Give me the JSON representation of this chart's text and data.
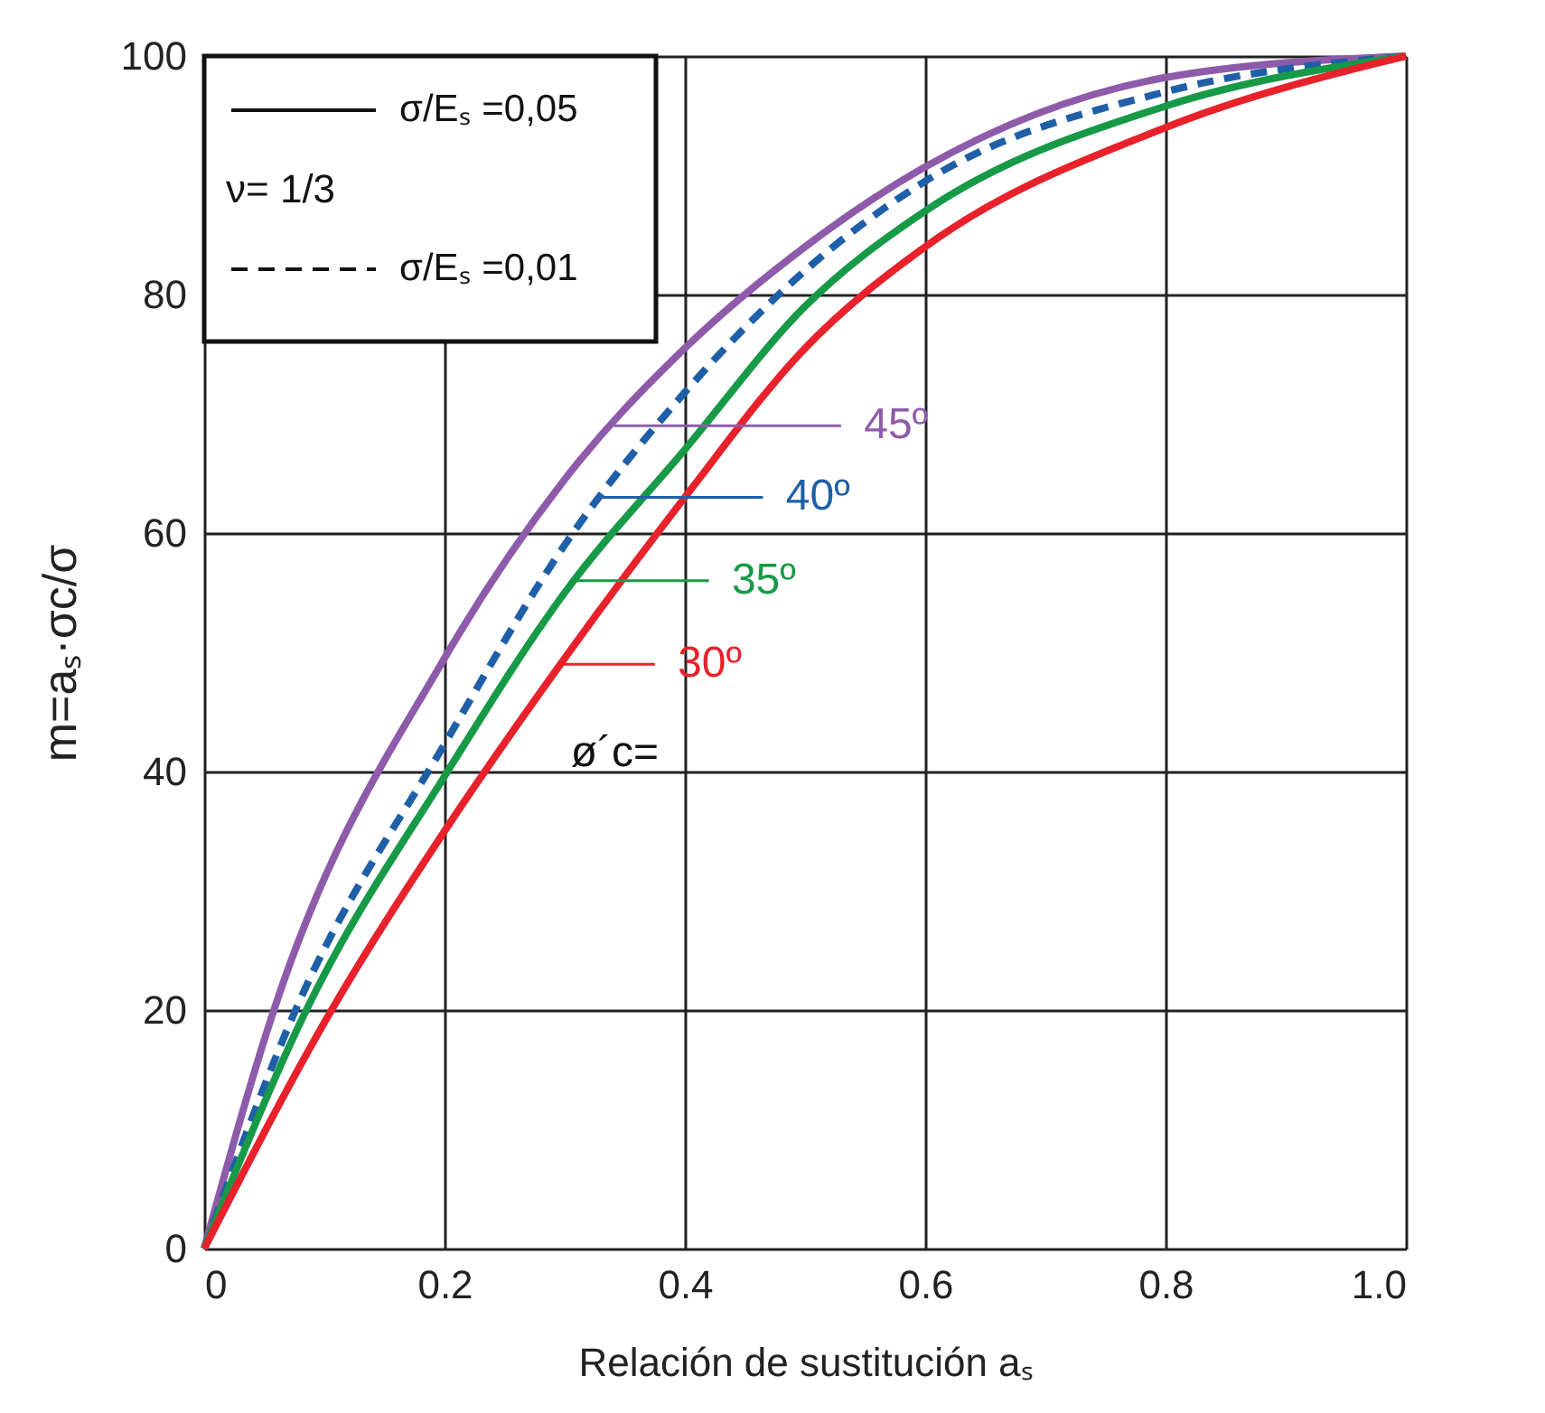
{
  "chart_data": {
    "type": "line",
    "xlabel": "Relación de sustitución aₛ",
    "ylabel": "m=aₛ·σc/σ",
    "legend_title": "ν= 1/3",
    "legend": "top left",
    "xlim": [
      0,
      1
    ],
    "ylim": [
      0,
      100
    ],
    "xticks": [
      0,
      0.2,
      0.4,
      0.6,
      0.8,
      {
        "value": 1,
        "label": "1.0"
      }
    ],
    "yticks": [
      0,
      20,
      40,
      60,
      80,
      100
    ],
    "grid": true,
    "marker": "none",
    "series": [
      {
        "name": "45º",
        "color": "#8e5bab",
        "line_style": "solid",
        "x": [
          0,
          0.058,
          0.2,
          0.3,
          0.4,
          0.5,
          0.6,
          0.8,
          1
        ],
        "values": [
          0,
          20,
          49.5,
          64.5,
          75.5,
          84,
          90.7,
          98.2,
          100
        ]
      },
      {
        "name": "40º",
        "color": "#1f5fa8",
        "line_style": "dashed",
        "x": [
          0,
          0.076,
          0.2,
          0.3,
          0.4,
          0.5,
          0.6,
          0.8,
          1
        ],
        "values": [
          0,
          20,
          42.3,
          59,
          71.8,
          82,
          89.5,
          97,
          100
        ]
      },
      {
        "name": "35º",
        "color": "#179a47",
        "line_style": "solid",
        "x": [
          0,
          0.085,
          0.2,
          0.3,
          0.4,
          0.5,
          0.6,
          0.8,
          1
        ],
        "values": [
          0,
          20,
          39.6,
          55,
          67,
          79,
          87,
          95.8,
          100
        ]
      },
      {
        "name": "30º",
        "color": "#e8212b",
        "line_style": "solid",
        "x": [
          0,
          0.106,
          0.2,
          0.3,
          0.4,
          0.5,
          0.6,
          0.8,
          1
        ],
        "values": [
          0,
          20,
          35,
          49.5,
          63,
          75.5,
          84,
          94,
          100
        ]
      }
    ],
    "annotations": [
      "σ/Eₛ =0,05",
      "σ/Eₛ =0,01",
      "ø´c="
    ]
  }
}
